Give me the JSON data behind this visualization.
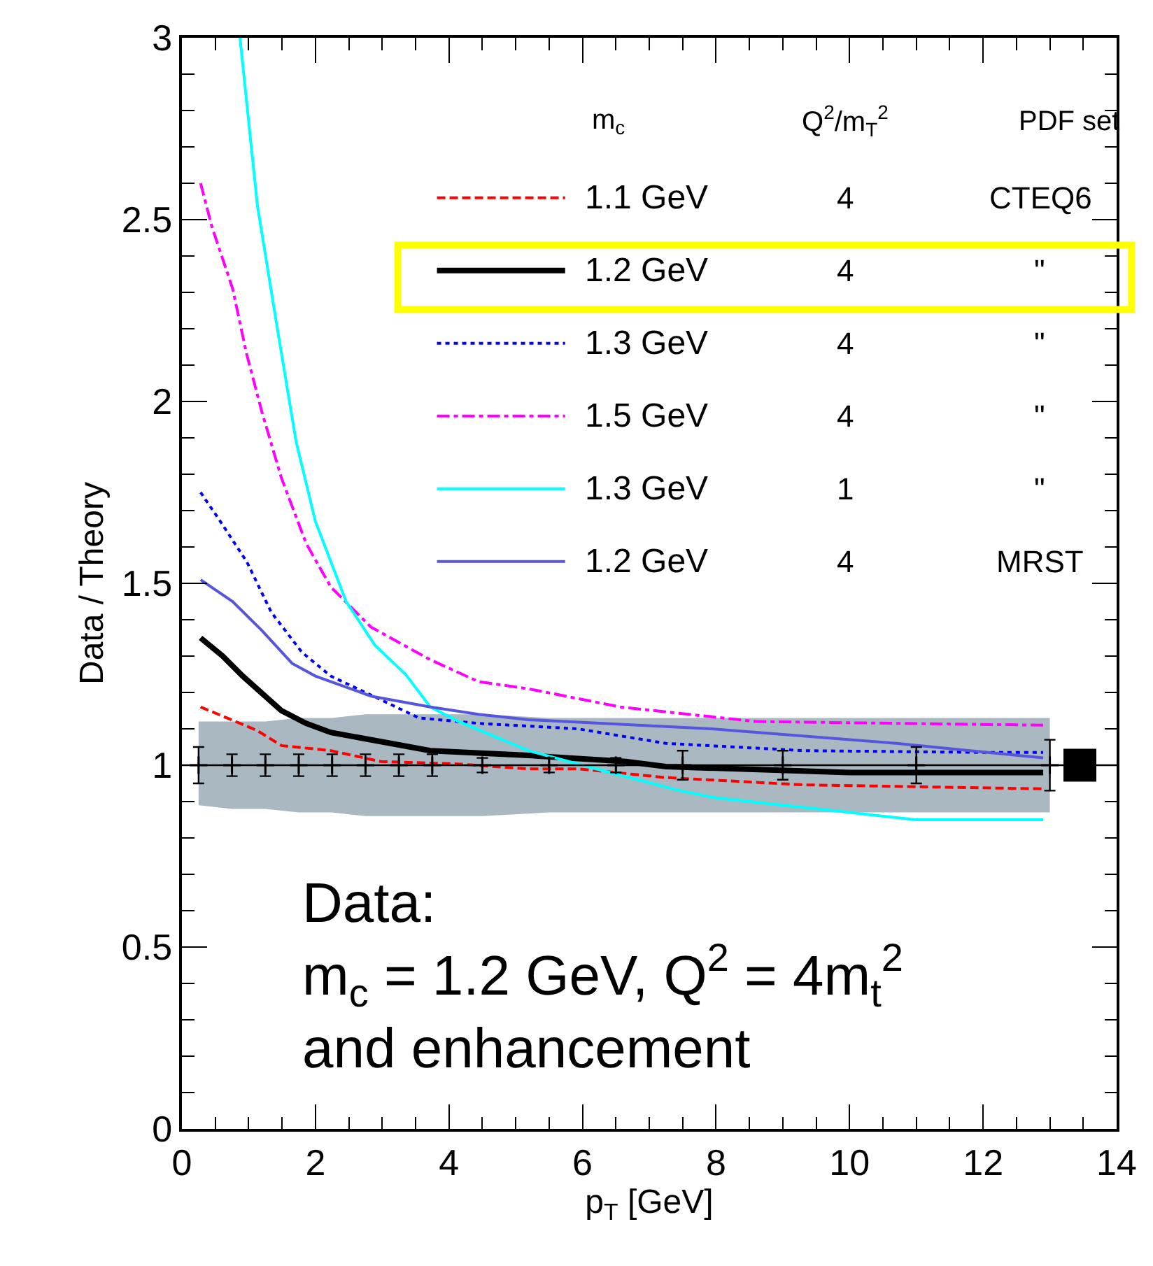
{
  "chart_data": {
    "type": "line",
    "xlabel": "p$_{T}$ [GeV]",
    "ylabel": "Data / Theory",
    "xlim": [
      0,
      14
    ],
    "xticks": [
      0,
      2,
      4,
      6,
      8,
      10,
      12,
      14
    ],
    "ylim": [
      0,
      3
    ],
    "yticks": [
      0,
      0.5,
      1,
      1.5,
      2,
      2.5,
      3
    ],
    "grid": false,
    "legend": "top",
    "ref_lines": [
      {
        "axis": "y",
        "value": 1,
        "color": "#000000",
        "line_style": "solid"
      }
    ],
    "annotations": [
      "m$_{c}$",
      "Q$^{2}$/m$_{T}$$^{2}$",
      "PDF set",
      "4",
      "CTEQ6",
      "4",
      "\"",
      "4",
      "\"",
      "4",
      "\"",
      "1",
      "\"",
      "4",
      "MRST",
      "Data:\nm$_{c}$ = 1.2 GeV, Q$^{2}$ = 4m$_{t}$$^{2}$\nand enhancement"
    ],
    "series": [
      {
        "name": "1.1 GeV",
        "color": "#ff0000",
        "line_style": "dashed",
        "x": [
          0.28,
          0.61,
          1.13,
          1.49,
          2.23,
          2.98,
          4.07,
          5.19,
          5.93,
          7.25,
          9.3,
          12.9
        ],
        "values": [
          1.16,
          1.135,
          1.095,
          1.054,
          1.04,
          1.01,
          1.004,
          0.99,
          0.99,
          0.966,
          0.946,
          0.935
        ]
      },
      {
        "name": "1.2 GeV",
        "color": "#000000",
        "line_style": "solid",
        "x": [
          0.28,
          0.61,
          0.91,
          1.49,
          1.86,
          2.23,
          2.98,
          3.72,
          5.19,
          6.65,
          7.25,
          10.0,
          12.9
        ],
        "values": [
          1.35,
          1.3,
          1.245,
          1.15,
          1.115,
          1.09,
          1.065,
          1.04,
          1.027,
          1.01,
          0.996,
          0.98,
          0.98
        ]
      },
      {
        "name": "1.3 GeV",
        "color": "#0000ff",
        "line_style": "dotted",
        "x": [
          0.28,
          0.54,
          0.97,
          1.34,
          1.8,
          2.23,
          2.98,
          3.55,
          4.44,
          5.93,
          7.25,
          9.32,
          12.07,
          12.9
        ],
        "values": [
          1.75,
          1.68,
          1.56,
          1.42,
          1.31,
          1.245,
          1.18,
          1.13,
          1.115,
          1.1,
          1.06,
          1.04,
          1.035,
          1.035
        ]
      },
      {
        "name": "1.5 GeV",
        "color": "#ff00ff",
        "line_style": "dashdot",
        "x": [
          0.28,
          0.45,
          0.76,
          0.97,
          1.2,
          1.49,
          1.86,
          2.23,
          2.83,
          3.72,
          4.44,
          5.19,
          6.57,
          8.6,
          12.9
        ],
        "values": [
          2.6,
          2.48,
          2.31,
          2.13,
          1.97,
          1.79,
          1.61,
          1.49,
          1.38,
          1.29,
          1.23,
          1.21,
          1.16,
          1.12,
          1.11
        ]
      },
      {
        "name": "1.3 GeV",
        "color": "#00ffff",
        "line_style": "solid",
        "x": [
          0.87,
          1.13,
          1.43,
          1.71,
          2.0,
          2.46,
          2.89,
          3.35,
          3.72,
          4.15,
          5.19,
          6.3,
          7.46,
          8.0,
          10.0,
          11.0,
          12.9
        ],
        "values": [
          3.0,
          2.54,
          2.2,
          1.89,
          1.67,
          1.45,
          1.33,
          1.25,
          1.16,
          1.12,
          1.04,
          0.985,
          0.93,
          0.91,
          0.87,
          0.85,
          0.85
        ]
      },
      {
        "name": "1.2 GeV",
        "color": "#5555dd",
        "line_style": "solid",
        "x": [
          0.28,
          0.76,
          1.2,
          1.65,
          2.0,
          2.83,
          3.72,
          4.44,
          5.19,
          7.93,
          10.7,
          12.07,
          12.9
        ],
        "values": [
          1.51,
          1.45,
          1.37,
          1.28,
          1.245,
          1.19,
          1.16,
          1.14,
          1.125,
          1.1,
          1.06,
          1.035,
          1.02
        ]
      },
      {
        "type": "scatter",
        "color": "#000000",
        "marker": "cross",
        "x": [
          0.25,
          0.75,
          1.25,
          1.75,
          2.25,
          2.75,
          3.25,
          3.75,
          4.5,
          5.5,
          6.5,
          7.5,
          9,
          11,
          13
        ],
        "values": [
          1,
          1,
          1,
          1,
          1,
          1,
          1,
          1,
          1,
          1,
          1,
          1,
          1,
          1,
          1
        ],
        "errors": [
          0.05,
          0.03,
          0.03,
          0.03,
          0.03,
          0.03,
          0.03,
          0.03,
          0.02,
          0.02,
          0.02,
          0.04,
          0.04,
          0.05,
          0.07
        ],
        "lower": [
          0.89,
          0.88,
          0.88,
          0.87,
          0.87,
          0.86,
          0.86,
          0.86,
          0.86,
          0.87,
          0.87,
          0.87,
          0.87,
          0.87,
          0.87
        ],
        "upper": [
          1.12,
          1.12,
          1.12,
          1.13,
          1.13,
          1.14,
          1.14,
          1.14,
          1.14,
          1.13,
          1.13,
          1.13,
          1.13,
          1.13,
          1.13
        ]
      },
      {
        "type": "scatter",
        "color": "#000000",
        "marker": "square",
        "x": [
          13.45
        ],
        "values": [
          1
        ]
      }
    ]
  }
}
